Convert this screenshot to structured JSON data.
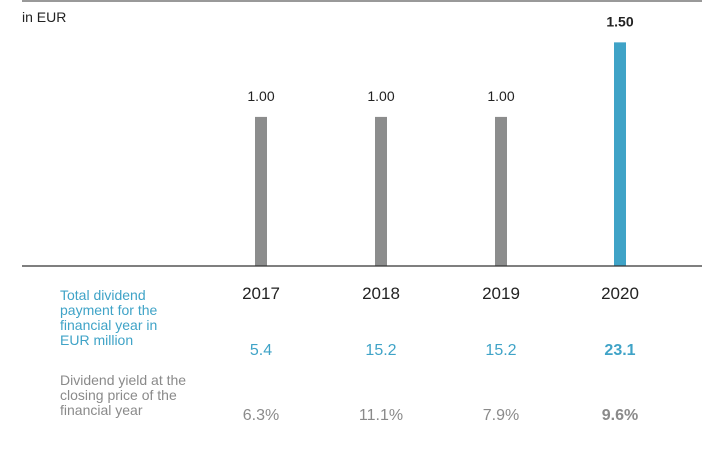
{
  "chart_data": {
    "type": "bar",
    "unit_label": "in EUR",
    "categories": [
      "2017",
      "2018",
      "2019",
      "2020"
    ],
    "values": [
      1.0,
      1.0,
      1.0,
      1.5
    ],
    "value_labels": [
      "1.00",
      "1.00",
      "1.00",
      "1.50"
    ],
    "highlight_index": 3,
    "ylim": [
      0,
      1.65
    ],
    "colors": {
      "bar": "#8c8d8d",
      "highlight": "#3fa3c7",
      "axis": "#333333",
      "text": "#222222",
      "total_label": "#3fa3c7",
      "yield_label": "#8a8a8a"
    }
  },
  "table": {
    "total_label": "Total dividend payment for the financial year in EUR million",
    "total_label_lines": [
      "Total dividend",
      "payment for the",
      "financial year in",
      "EUR million"
    ],
    "total_values": [
      "5.4",
      "15.2",
      "15.2",
      "23.1"
    ],
    "yield_label": "Dividend yield at the closing price of the financial year",
    "yield_label_lines": [
      "Dividend yield at the",
      "closing price of the",
      "financial year"
    ],
    "yield_values": [
      "6.3%",
      "11.1%",
      "7.9%",
      "9.6%"
    ]
  }
}
